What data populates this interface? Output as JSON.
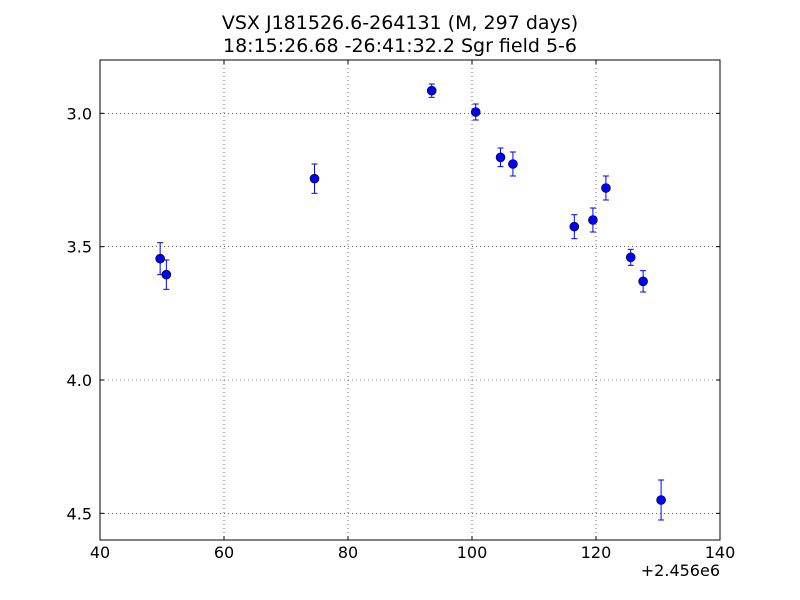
{
  "chart_data": {
    "type": "scatter",
    "title": "VSX J181526.6-264131  (M, 297 days)",
    "subtitle": "18:15:26.68 -26:41:32.2 Sgr field 5-6",
    "xlabel": "",
    "ylabel": "",
    "x_offset_label": "+2.456e6",
    "xlim": [
      40,
      140
    ],
    "ylim": [
      4.6,
      2.8
    ],
    "y_inverted": true,
    "grid": true,
    "x_ticks": [
      40,
      60,
      80,
      100,
      120,
      140
    ],
    "x_tick_labels": [
      "40",
      "60",
      "80",
      "100",
      "120",
      "140"
    ],
    "y_ticks": [
      3.0,
      3.5,
      4.0,
      4.5
    ],
    "y_tick_labels": [
      "3.0",
      "3.5",
      "4.0",
      "4.5"
    ],
    "marker_color": "#0000ff",
    "points": [
      {
        "x": 49.7,
        "y": 3.545,
        "err": 0.06
      },
      {
        "x": 50.7,
        "y": 3.605,
        "err": 0.055
      },
      {
        "x": 74.6,
        "y": 3.245,
        "err": 0.055
      },
      {
        "x": 93.5,
        "y": 2.915,
        "err": 0.025
      },
      {
        "x": 100.6,
        "y": 2.995,
        "err": 0.03
      },
      {
        "x": 104.6,
        "y": 3.165,
        "err": 0.035
      },
      {
        "x": 106.6,
        "y": 3.19,
        "err": 0.045
      },
      {
        "x": 116.5,
        "y": 3.425,
        "err": 0.045
      },
      {
        "x": 119.5,
        "y": 3.4,
        "err": 0.045
      },
      {
        "x": 121.6,
        "y": 3.28,
        "err": 0.045
      },
      {
        "x": 125.6,
        "y": 3.54,
        "err": 0.03
      },
      {
        "x": 127.6,
        "y": 3.63,
        "err": 0.04
      },
      {
        "x": 130.5,
        "y": 4.45,
        "err": 0.075
      }
    ]
  }
}
